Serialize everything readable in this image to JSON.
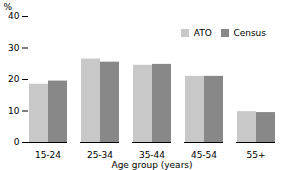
{
  "chart_data": {
    "type": "bar",
    "categories": [
      "15-24",
      "25-34",
      "35-44",
      "45-54",
      "55+"
    ],
    "series": [
      {
        "name": "ATO",
        "color": "#c8c8c8",
        "values": [
          18.5,
          26.5,
          24.5,
          21.0,
          9.8
        ]
      },
      {
        "name": "Census",
        "color": "#888888",
        "values": [
          19.5,
          25.5,
          24.8,
          21.0,
          9.5
        ]
      }
    ],
    "xlabel": "Age group (years)",
    "ylabel": "%",
    "ylim": [
      0,
      40
    ],
    "yticks": [
      0,
      10,
      20,
      30,
      40
    ],
    "grid": false,
    "legend": "upper right"
  }
}
